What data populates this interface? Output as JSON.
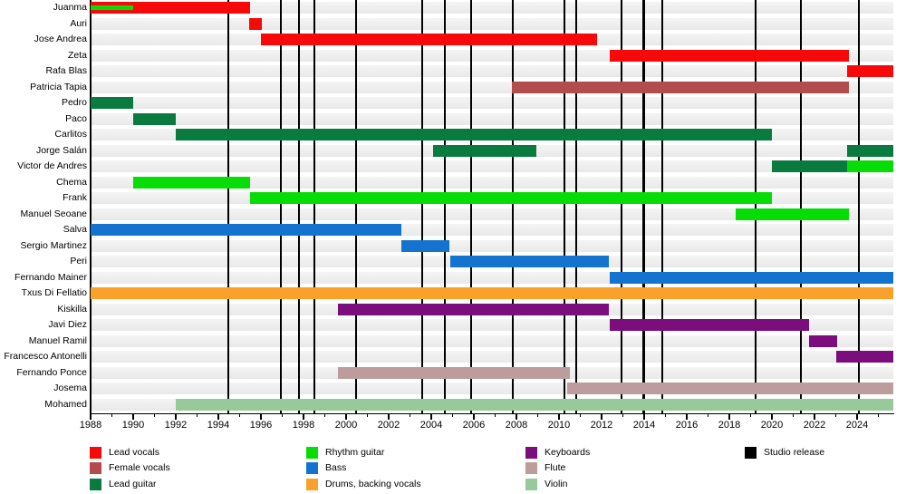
{
  "chart_data": {
    "type": "timeline",
    "description": "Band members timeline (Gantt-style) with studio release markers",
    "axis": {
      "start": 1988,
      "end": 2025.7,
      "labels": [
        "1988",
        "1990",
        "1992",
        "1994",
        "1996",
        "1998",
        "2000",
        "2002",
        "2004",
        "2006",
        "2008",
        "2010",
        "2012",
        "2014",
        "2016",
        "2018",
        "2020",
        "2022",
        "2024"
      ],
      "label_step": 2,
      "minor_step": 1
    },
    "roles": {
      "lead_vocals": {
        "label": "Lead vocals",
        "color": "#f60909"
      },
      "female_vocals": {
        "label": "Female vocals",
        "color": "#b34d4d"
      },
      "lead_guitar": {
        "label": "Lead guitar",
        "color": "#0a7b3e"
      },
      "rhythm_guitar": {
        "label": "Rhythm guitar",
        "color": "#06dd06"
      },
      "bass": {
        "label": "Bass",
        "color": "#1373cf"
      },
      "drums_backing": {
        "label": "Drums, backing vocals",
        "color": "#f9a12b"
      },
      "keyboards": {
        "label": "Keyboards",
        "color": "#7c0d7c"
      },
      "flute": {
        "label": "Flute",
        "color": "#bc9c9c"
      },
      "violin": {
        "label": "Violin",
        "color": "#98c998"
      },
      "studio_release": {
        "label": "Studio release",
        "color": "#000000"
      }
    },
    "legend_columns": [
      [
        "lead_vocals",
        "female_vocals",
        "lead_guitar"
      ],
      [
        "rhythm_guitar",
        "bass",
        "drums_backing"
      ],
      [
        "keyboards",
        "flute",
        "violin"
      ],
      [
        "studio_release"
      ]
    ],
    "members": [
      {
        "name": "Juanma",
        "bars": [
          {
            "role": "lead_vocals",
            "from": 1988,
            "to": 1995.5
          },
          {
            "role": "rhythm_guitar",
            "from": 1988,
            "to": 1990,
            "overlay": true
          }
        ]
      },
      {
        "name": "Auri",
        "bars": [
          {
            "role": "lead_vocals",
            "from": 1995.45,
            "to": 1996.05
          }
        ]
      },
      {
        "name": "Jose Andrea",
        "bars": [
          {
            "role": "lead_vocals",
            "from": 1996,
            "to": 2011.8
          }
        ]
      },
      {
        "name": "Zeta",
        "bars": [
          {
            "role": "lead_vocals",
            "from": 2012.4,
            "to": 2023.6
          }
        ]
      },
      {
        "name": "Rafa Blas",
        "bars": [
          {
            "role": "lead_vocals",
            "from": 2023.55,
            "to": 2025.7
          }
        ]
      },
      {
        "name": "Patricia Tapia",
        "bars": [
          {
            "role": "female_vocals",
            "from": 2007.8,
            "to": 2023.6
          }
        ]
      },
      {
        "name": "Pedro",
        "bars": [
          {
            "role": "lead_guitar",
            "from": 1988,
            "to": 1990
          }
        ]
      },
      {
        "name": "Paco",
        "bars": [
          {
            "role": "lead_guitar",
            "from": 1990,
            "to": 1992
          }
        ]
      },
      {
        "name": "Carlitos",
        "bars": [
          {
            "role": "lead_guitar",
            "from": 1992,
            "to": 2020
          }
        ]
      },
      {
        "name": "Jorge Salán",
        "bars": [
          {
            "role": "lead_guitar",
            "from": 2004.1,
            "to": 2008.95
          },
          {
            "role": "lead_guitar",
            "from": 2023.55,
            "to": 2025.7
          }
        ]
      },
      {
        "name": "Victor de Andres",
        "bars": [
          {
            "role": "lead_guitar",
            "from": 2020,
            "to": 2023.55
          },
          {
            "role": "rhythm_guitar",
            "from": 2023.55,
            "to": 2025.7
          }
        ]
      },
      {
        "name": "Chema",
        "bars": [
          {
            "role": "rhythm_guitar",
            "from": 1990,
            "to": 1995.5
          }
        ]
      },
      {
        "name": "Frank",
        "bars": [
          {
            "role": "rhythm_guitar",
            "from": 1995.5,
            "to": 2020
          }
        ]
      },
      {
        "name": "Manuel Seoane",
        "bars": [
          {
            "role": "rhythm_guitar",
            "from": 2018.3,
            "to": 2023.6
          }
        ]
      },
      {
        "name": "Salva",
        "bars": [
          {
            "role": "bass",
            "from": 1988,
            "to": 2002.6
          }
        ]
      },
      {
        "name": "Sergio Martinez",
        "bars": [
          {
            "role": "bass",
            "from": 2002.6,
            "to": 2004.85
          }
        ]
      },
      {
        "name": "Peri",
        "bars": [
          {
            "role": "bass",
            "from": 2004.9,
            "to": 2012.35
          }
        ]
      },
      {
        "name": "Fernando Mainer",
        "bars": [
          {
            "role": "bass",
            "from": 2012.4,
            "to": 2025.7
          }
        ]
      },
      {
        "name": "Txus Di Fellatio",
        "bars": [
          {
            "role": "drums_backing",
            "from": 1988,
            "to": 2025.7
          }
        ]
      },
      {
        "name": "Kiskilla",
        "bars": [
          {
            "role": "keyboards",
            "from": 1999.6,
            "to": 2012.35
          }
        ]
      },
      {
        "name": "Javi Diez",
        "bars": [
          {
            "role": "keyboards",
            "from": 2012.4,
            "to": 2021.75
          }
        ]
      },
      {
        "name": "Manuel Ramil",
        "bars": [
          {
            "role": "keyboards",
            "from": 2021.75,
            "to": 2023.05
          }
        ]
      },
      {
        "name": "Francesco Antonelli",
        "bars": [
          {
            "role": "keyboards",
            "from": 2023.0,
            "to": 2025.7
          }
        ]
      },
      {
        "name": "Fernando Ponce",
        "bars": [
          {
            "role": "flute",
            "from": 1999.6,
            "to": 2010.5
          }
        ]
      },
      {
        "name": "Josema",
        "bars": [
          {
            "role": "flute",
            "from": 2010.4,
            "to": 2025.7
          }
        ]
      },
      {
        "name": "Mohamed",
        "bars": [
          {
            "role": "violin",
            "from": 1992,
            "to": 2025.7
          }
        ]
      }
    ],
    "studio_releases": [
      1994.47,
      1996.94,
      1997.79,
      1998.51,
      2000.47,
      2003.57,
      2004.64,
      2005.87,
      2007.83,
      2010.26,
      2010.81,
      2012.94,
      2013.98,
      2014.85,
      2019.23,
      2021.36,
      2024.08
    ]
  }
}
